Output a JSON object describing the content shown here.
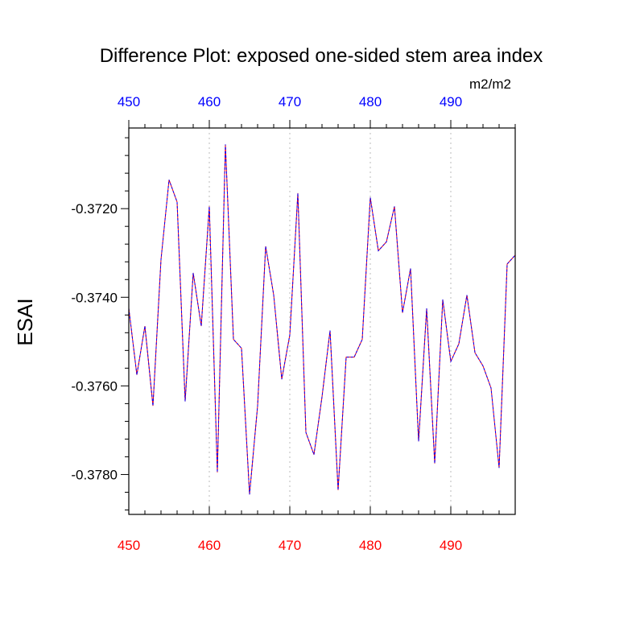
{
  "chart_data": {
    "type": "line",
    "title": "Difference Plot: exposed one-sided stem area index",
    "ylabel": "ESAI",
    "units_label": "m2/m2",
    "xlim": [
      450,
      498
    ],
    "ylim": [
      -0.3789,
      -0.37018
    ],
    "x_ticks": [
      450,
      460,
      470,
      480,
      490
    ],
    "x_tick_labels": [
      "450",
      "460",
      "470",
      "480",
      "490"
    ],
    "y_ticks": [
      -0.372,
      -0.374,
      -0.376,
      -0.378
    ],
    "y_tick_labels": [
      "-0.3720",
      "-0.3740",
      "-0.3760",
      "-0.3780"
    ],
    "grid": "vertical-dotted",
    "colors": {
      "bottom_axis_labels": "#ff0000",
      "top_axis_labels": "#0000ff",
      "series_a": "#ff0000",
      "series_b": "#0000ff",
      "grid": "#bbbbbb"
    },
    "x": [
      450,
      451,
      452,
      453,
      454,
      455,
      456,
      457,
      458,
      459,
      460,
      461,
      462,
      463,
      464,
      465,
      466,
      467,
      468,
      469,
      470,
      471,
      472,
      473,
      474,
      475,
      476,
      477,
      478,
      479,
      480,
      481,
      482,
      483,
      484,
      485,
      486,
      487,
      488,
      489,
      490,
      491,
      492,
      493,
      494,
      495,
      496,
      497,
      498
    ],
    "series": [
      {
        "values": [
          -0.37425,
          -0.37575,
          -0.37465,
          -0.37645,
          -0.37315,
          -0.37135,
          -0.37185,
          -0.37635,
          -0.37345,
          -0.37465,
          -0.37195,
          -0.37795,
          -0.37055,
          -0.37495,
          -0.37515,
          -0.37845,
          -0.37645,
          -0.37285,
          -0.37395,
          -0.37585,
          -0.37485,
          -0.37165,
          -0.37705,
          -0.37755,
          -0.37625,
          -0.37475,
          -0.37835,
          -0.37535,
          -0.37535,
          -0.37495,
          -0.37175,
          -0.37295,
          -0.37275,
          -0.37195,
          -0.37435,
          -0.37335,
          -0.37725,
          -0.37425,
          -0.37775,
          -0.37405,
          -0.37545,
          -0.37505,
          -0.37395,
          -0.37525,
          -0.37555,
          -0.37605,
          -0.37785,
          -0.37325,
          -0.37305
        ]
      }
    ]
  }
}
